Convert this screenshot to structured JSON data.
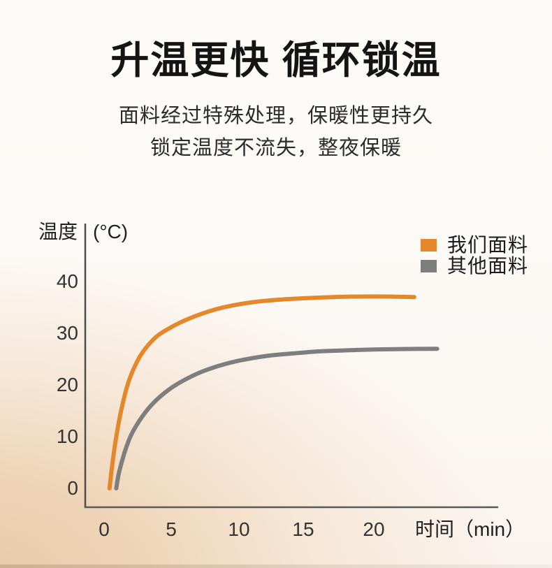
{
  "page": {
    "title": "升温更快 循环锁温",
    "subtitle_line1": "面料经过特殊处理，保暖性更持久",
    "subtitle_line2": "锁定温度不流失，整夜保暖"
  },
  "chart_data": {
    "type": "line",
    "title": "",
    "xlabel": "时间（min）",
    "ylabel": "温度",
    "ylabel_unit": "(°C)",
    "x_ticks": [
      "0",
      "5",
      "10",
      "15",
      "20"
    ],
    "y_ticks_top_to_bottom": [
      "40",
      "30",
      "20",
      "10",
      "0"
    ],
    "xlim": [
      0,
      26
    ],
    "ylim": [
      0,
      43
    ],
    "grid": false,
    "legend_position": "top-right",
    "axis_color": "#4d4d4d",
    "accent_color": "#E5882B",
    "secondary_color": "#7E7E7E",
    "series": [
      {
        "name": "我们面料",
        "color": "#E5882B",
        "points": [
          [
            0.4,
            0
          ],
          [
            0.6,
            4.5
          ],
          [
            0.9,
            10
          ],
          [
            1.3,
            15.5
          ],
          [
            1.8,
            20.5
          ],
          [
            2.5,
            24.8
          ],
          [
            3.2,
            27.5
          ],
          [
            4,
            29.6
          ],
          [
            5,
            31.2
          ],
          [
            6,
            32.5
          ],
          [
            7.5,
            34
          ],
          [
            9,
            35.1
          ],
          [
            11,
            36
          ],
          [
            13,
            36.5
          ],
          [
            15,
            36.8
          ],
          [
            17,
            37
          ],
          [
            19,
            37.1
          ],
          [
            21,
            37.1
          ],
          [
            23,
            37
          ]
        ]
      },
      {
        "name": "其他面料",
        "color": "#7E7E7E",
        "points": [
          [
            0.9,
            0
          ],
          [
            1.1,
            3
          ],
          [
            1.5,
            6.8
          ],
          [
            2,
            10.3
          ],
          [
            2.7,
            13.4
          ],
          [
            3.5,
            16.1
          ],
          [
            4.5,
            18.5
          ],
          [
            5.5,
            20.3
          ],
          [
            7,
            22.3
          ],
          [
            8.5,
            23.7
          ],
          [
            10,
            24.7
          ],
          [
            12,
            25.6
          ],
          [
            14,
            26.1
          ],
          [
            16,
            26.5
          ],
          [
            18,
            26.7
          ],
          [
            20,
            26.85
          ],
          [
            22,
            26.95
          ],
          [
            24.7,
            27
          ]
        ]
      }
    ]
  }
}
